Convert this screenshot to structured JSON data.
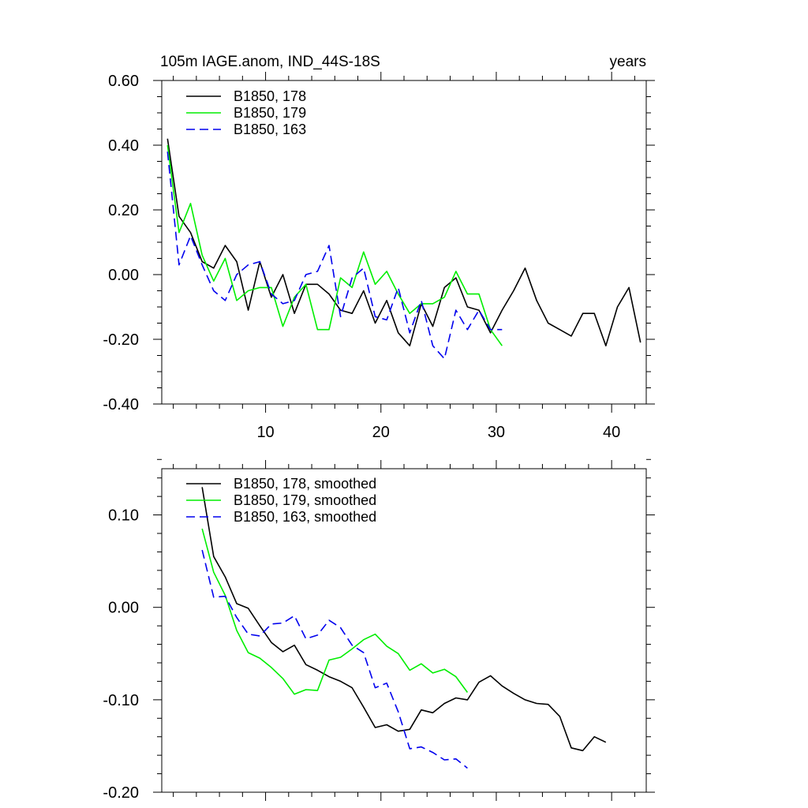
{
  "chart_data": [
    {
      "type": "line",
      "title": "105m IAGE.anom, IND_44S-18S",
      "title_right": "years",
      "xlim": [
        1,
        43
      ],
      "ylim": [
        -0.4,
        0.6
      ],
      "x_ticks": [
        10,
        20,
        30,
        40
      ],
      "x_tick_labels": [
        "10",
        "20",
        "30",
        "40"
      ],
      "y_ticks": [
        -0.4,
        -0.2,
        0.0,
        0.2,
        0.4,
        0.6
      ],
      "y_tick_labels": [
        "-0.40",
        "-0.20",
        "0.00",
        "0.20",
        "0.40",
        "0.60"
      ],
      "legend_position": "top-left",
      "series": [
        {
          "name": "B1850, 178",
          "color": "#000000",
          "dash": "solid",
          "x": [
            1.5,
            2.5,
            3.5,
            4.5,
            5.5,
            6.5,
            7.5,
            8.5,
            9.5,
            10.5,
            11.5,
            12.5,
            13.5,
            14.5,
            15.5,
            16.5,
            17.5,
            18.5,
            19.5,
            20.5,
            21.5,
            22.5,
            23.5,
            24.5,
            25.5,
            26.5,
            27.5,
            28.5,
            29.5,
            30.5,
            31.5,
            32.5,
            33.5,
            34.5,
            35.5,
            36.5,
            37.5,
            38.5,
            39.5,
            40.5,
            41.5,
            42.5
          ],
          "y": [
            0.42,
            0.18,
            0.13,
            0.04,
            0.02,
            0.09,
            0.04,
            -0.11,
            0.04,
            -0.07,
            0.0,
            -0.12,
            -0.03,
            -0.03,
            -0.06,
            -0.11,
            -0.12,
            -0.05,
            -0.15,
            -0.08,
            -0.18,
            -0.22,
            -0.09,
            -0.16,
            -0.04,
            -0.01,
            -0.1,
            -0.11,
            -0.18,
            -0.11,
            -0.05,
            0.02,
            -0.08,
            -0.15,
            -0.17,
            -0.19,
            -0.12,
            -0.12,
            -0.22,
            -0.1,
            -0.04,
            -0.21
          ]
        },
        {
          "name": "B1850, 179",
          "color": "#00ee00",
          "dash": "solid",
          "x": [
            1.5,
            2.5,
            3.5,
            4.5,
            5.5,
            6.5,
            7.5,
            8.5,
            9.5,
            10.5,
            11.5,
            12.5,
            13.5,
            14.5,
            15.5,
            16.5,
            17.5,
            18.5,
            19.5,
            20.5,
            21.5,
            22.5,
            23.5,
            24.5,
            25.5,
            26.5,
            27.5,
            28.5,
            29.5,
            30.5
          ],
          "y": [
            0.4,
            0.13,
            0.22,
            0.06,
            -0.02,
            0.05,
            -0.08,
            -0.05,
            -0.04,
            -0.04,
            -0.16,
            -0.07,
            -0.03,
            -0.17,
            -0.17,
            -0.01,
            -0.04,
            0.07,
            -0.03,
            0.01,
            -0.06,
            -0.12,
            -0.09,
            -0.09,
            -0.07,
            0.01,
            -0.06,
            -0.06,
            -0.17,
            -0.22
          ]
        },
        {
          "name": "B1850, 163",
          "color": "#0000ee",
          "dash": "dashed",
          "x": [
            1.5,
            2.5,
            3.5,
            4.5,
            5.5,
            6.5,
            7.5,
            8.5,
            9.5,
            10.5,
            11.5,
            12.5,
            13.5,
            14.5,
            15.5,
            16.5,
            17.5,
            18.5,
            19.5,
            20.5,
            21.5,
            22.5,
            23.5,
            24.5,
            25.5,
            26.5,
            27.5,
            28.5,
            29.5,
            30.5
          ],
          "y": [
            0.38,
            0.03,
            0.12,
            0.03,
            -0.05,
            -0.08,
            0.0,
            0.03,
            0.04,
            -0.06,
            -0.09,
            -0.08,
            0.0,
            0.01,
            0.09,
            -0.13,
            -0.01,
            0.02,
            -0.13,
            -0.14,
            -0.04,
            -0.18,
            -0.08,
            -0.22,
            -0.26,
            -0.11,
            -0.17,
            -0.11,
            -0.17,
            -0.17
          ]
        }
      ]
    },
    {
      "type": "line",
      "title": "",
      "xlim": [
        1,
        43
      ],
      "ylim": [
        -0.2,
        0.15
      ],
      "x_ticks": [
        10,
        20,
        30,
        40
      ],
      "x_tick_labels": [],
      "y_ticks": [
        -0.2,
        -0.1,
        0.0,
        0.1
      ],
      "y_tick_labels": [
        "-0.20",
        "-0.10",
        "0.00",
        "0.10"
      ],
      "legend_position": "top-left",
      "series": [
        {
          "name": "B1850, 178, smoothed",
          "color": "#000000",
          "dash": "solid",
          "x": [
            4.5,
            5.5,
            6.5,
            7.5,
            8.5,
            9.5,
            10.5,
            11.5,
            12.5,
            13.5,
            14.5,
            15.5,
            16.5,
            17.5,
            18.5,
            19.5,
            20.5,
            21.5,
            22.5,
            23.5,
            24.5,
            25.5,
            26.5,
            27.5,
            28.5,
            29.5,
            30.5,
            31.5,
            32.5,
            33.5,
            34.5,
            35.5,
            36.5,
            37.5,
            38.5,
            39.5
          ],
          "y": [
            0.13,
            0.055,
            0.033,
            0.004,
            -0.001,
            -0.02,
            -0.038,
            -0.048,
            -0.041,
            -0.062,
            -0.068,
            -0.075,
            -0.08,
            -0.087,
            -0.108,
            -0.13,
            -0.127,
            -0.134,
            -0.132,
            -0.111,
            -0.114,
            -0.104,
            -0.098,
            -0.1,
            -0.081,
            -0.074,
            -0.085,
            -0.093,
            -0.1,
            -0.104,
            -0.105,
            -0.118,
            -0.152,
            -0.155,
            -0.14,
            -0.146
          ]
        },
        {
          "name": "B1850, 179, smoothed",
          "color": "#00ee00",
          "dash": "solid",
          "x": [
            4.5,
            5.5,
            6.5,
            7.5,
            8.5,
            9.5,
            10.5,
            11.5,
            12.5,
            13.5,
            14.5,
            15.5,
            16.5,
            17.5,
            18.5,
            19.5,
            20.5,
            21.5,
            22.5,
            23.5,
            24.5,
            25.5,
            26.5,
            27.5
          ],
          "y": [
            0.085,
            0.038,
            0.013,
            -0.025,
            -0.049,
            -0.055,
            -0.065,
            -0.077,
            -0.094,
            -0.089,
            -0.09,
            -0.057,
            -0.054,
            -0.045,
            -0.035,
            -0.029,
            -0.042,
            -0.05,
            -0.068,
            -0.061,
            -0.071,
            -0.067,
            -0.075,
            -0.092
          ]
        },
        {
          "name": "B1850, 163, smoothed",
          "color": "#0000ee",
          "dash": "dashed",
          "x": [
            4.5,
            5.5,
            6.5,
            7.5,
            8.5,
            9.5,
            10.5,
            11.5,
            12.5,
            13.5,
            14.5,
            15.5,
            16.5,
            17.5,
            18.5,
            19.5,
            20.5,
            21.5,
            22.5,
            23.5,
            24.5,
            25.5,
            26.5,
            27.5
          ],
          "y": [
            0.062,
            0.011,
            0.012,
            -0.011,
            -0.029,
            -0.031,
            -0.018,
            -0.017,
            -0.009,
            -0.034,
            -0.03,
            -0.014,
            -0.022,
            -0.041,
            -0.049,
            -0.087,
            -0.082,
            -0.113,
            -0.153,
            -0.151,
            -0.157,
            -0.165,
            -0.164,
            -0.174
          ]
        }
      ]
    }
  ]
}
